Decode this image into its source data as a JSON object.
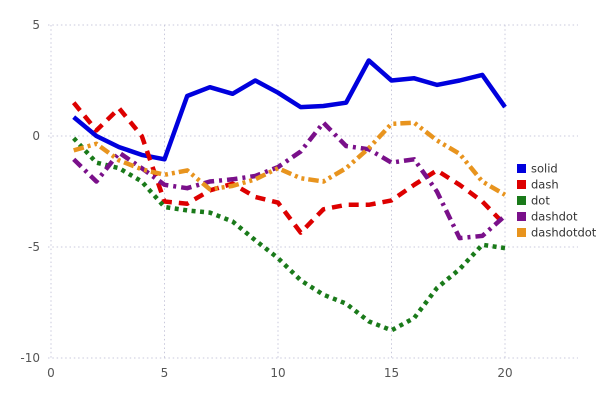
{
  "chart_data": {
    "type": "line",
    "title": "",
    "xlabel": "",
    "ylabel": "",
    "xlim": [
      0,
      20
    ],
    "ylim": [
      -10,
      5
    ],
    "x_ticks": [
      0,
      5,
      10,
      15,
      20
    ],
    "y_ticks": [
      5,
      0,
      -5,
      -10
    ],
    "grid": "dotted",
    "legend_position": "right-middle",
    "x": [
      1,
      2,
      3,
      4,
      5,
      6,
      7,
      8,
      9,
      10,
      11,
      12,
      13,
      14,
      15,
      16,
      17,
      18,
      19,
      20
    ],
    "series": [
      {
        "name": "solid",
        "line_style": "solid",
        "color": "#0000dd",
        "values": [
          0.85,
          0.0,
          -0.5,
          -0.85,
          -1.05,
          1.8,
          2.2,
          1.9,
          2.5,
          1.95,
          1.3,
          1.35,
          1.5,
          3.4,
          2.5,
          2.6,
          2.3,
          2.5,
          2.75,
          1.3
        ]
      },
      {
        "name": "dash",
        "line_style": "dash",
        "color": "#dd0000",
        "values": [
          1.5,
          0.25,
          1.25,
          0.0,
          -2.95,
          -3.05,
          -2.45,
          -2.15,
          -2.75,
          -3.0,
          -4.35,
          -3.3,
          -3.1,
          -3.1,
          -2.9,
          -2.2,
          -1.55,
          -2.2,
          -2.95,
          -4.0
        ]
      },
      {
        "name": "dot",
        "line_style": "dot",
        "color": "#1a7a1a",
        "values": [
          -0.1,
          -1.2,
          -1.45,
          -2.05,
          -3.2,
          -3.35,
          -3.45,
          -3.85,
          -4.7,
          -5.5,
          -6.5,
          -7.15,
          -7.55,
          -8.35,
          -8.75,
          -8.2,
          -6.85,
          -6.0,
          -4.9,
          -5.05
        ]
      },
      {
        "name": "dashdot",
        "line_style": "dashdot",
        "color": "#7a108a",
        "values": [
          -1.05,
          -2.05,
          -0.75,
          -1.45,
          -2.2,
          -2.35,
          -2.05,
          -1.95,
          -1.8,
          -1.4,
          -0.7,
          0.6,
          -0.45,
          -0.6,
          -1.2,
          -1.05,
          -2.5,
          -4.6,
          -4.5,
          -3.6
        ]
      },
      {
        "name": "dashdotdot",
        "line_style": "dashdotdot",
        "color": "#e8941e",
        "values": [
          -0.65,
          -0.35,
          -1.1,
          -1.5,
          -1.75,
          -1.55,
          -2.4,
          -2.25,
          -1.95,
          -1.45,
          -1.9,
          -2.05,
          -1.45,
          -0.55,
          0.55,
          0.6,
          -0.2,
          -0.8,
          -2.05,
          -2.65
        ]
      }
    ],
    "legend_entries": [
      "solid",
      "dash",
      "dot",
      "dashdot",
      "dashdotdot"
    ]
  },
  "style": {
    "background": "#ffffff",
    "grid_color": "#c9c9dc",
    "tick_label_color": "#555555",
    "legend_text_color": "#333333",
    "line_width": 4.5
  }
}
